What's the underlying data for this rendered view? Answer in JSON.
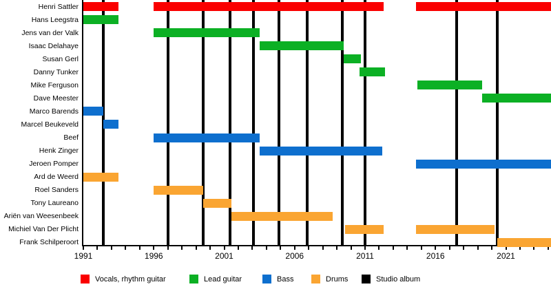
{
  "chart_data": {
    "type": "timeline",
    "title": "",
    "x_axis": {
      "tick_labels": [
        "1991",
        "1996",
        "2001",
        "2006",
        "2011",
        "2016",
        "2021"
      ],
      "minor_tick_interval_years": 1,
      "range": [
        1991,
        2024.3
      ]
    },
    "album_lines_years": [
      1992.4,
      1997.0,
      1999.5,
      2001.4,
      2003.1,
      2004.9,
      2006.9,
      2009.4,
      2011.0,
      2017.5,
      2020.4
    ],
    "rows": [
      {
        "label": "Henri Sattler",
        "role": "vocals_rhythm_guitar",
        "segments": [
          [
            1991.0,
            1993.5
          ],
          [
            1996.0,
            2012.3
          ],
          [
            2014.6,
            2024.3
          ]
        ]
      },
      {
        "label": "Hans Leegstra",
        "role": "lead_guitar",
        "segments": [
          [
            1991.0,
            1993.5
          ]
        ]
      },
      {
        "label": "Jens van der Valk",
        "role": "lead_guitar",
        "segments": [
          [
            1996.0,
            2003.5
          ]
        ]
      },
      {
        "label": "Isaac Delahaye",
        "role": "lead_guitar",
        "segments": [
          [
            2003.5,
            2009.5
          ]
        ]
      },
      {
        "label": "Susan Gerl",
        "role": "lead_guitar",
        "segments": [
          [
            2009.5,
            2010.7
          ]
        ]
      },
      {
        "label": "Danny Tunker",
        "role": "lead_guitar",
        "segments": [
          [
            2010.6,
            2012.4
          ]
        ]
      },
      {
        "label": "Mike Ferguson",
        "role": "lead_guitar",
        "segments": [
          [
            2014.7,
            2019.3
          ]
        ]
      },
      {
        "label": "Dave Meester",
        "role": "lead_guitar",
        "segments": [
          [
            2019.3,
            2024.3
          ]
        ]
      },
      {
        "label": "Marco Barends",
        "role": "bass",
        "segments": [
          [
            1991.0,
            1992.4
          ]
        ]
      },
      {
        "label": "Marcel Beukeveld",
        "role": "bass",
        "segments": [
          [
            1992.4,
            1993.5
          ]
        ]
      },
      {
        "label": "Beef",
        "role": "bass",
        "segments": [
          [
            1996.0,
            2003.5
          ]
        ]
      },
      {
        "label": "Henk Zinger",
        "role": "bass",
        "segments": [
          [
            2003.5,
            2012.2
          ]
        ]
      },
      {
        "label": "Jeroen Pomper",
        "role": "bass",
        "segments": [
          [
            2014.6,
            2024.3
          ]
        ]
      },
      {
        "label": "Ard de Weerd",
        "role": "drums",
        "segments": [
          [
            1991.0,
            1993.5
          ]
        ]
      },
      {
        "label": "Roel Sanders",
        "role": "drums",
        "segments": [
          [
            1996.0,
            1999.5
          ]
        ]
      },
      {
        "label": "Tony Laureano",
        "role": "drums",
        "segments": [
          [
            1999.5,
            2001.5
          ]
        ]
      },
      {
        "label": "Ariën van Weesenbeek",
        "role": "drums",
        "segments": [
          [
            2001.5,
            2008.7
          ]
        ]
      },
      {
        "label": "Michiel Van Der Plicht",
        "role": "drums",
        "segments": [
          [
            2009.6,
            2012.3
          ],
          [
            2014.6,
            2020.2
          ]
        ]
      },
      {
        "label": "Frank Schilperoort",
        "role": "drums",
        "segments": [
          [
            2020.4,
            2024.3
          ]
        ]
      }
    ],
    "colors": {
      "vocals_rhythm_guitar": "#fa0000",
      "lead_guitar": "#0cb024",
      "bass": "#0e6fce",
      "drums": "#faa532",
      "album_line": "#000000",
      "axis": "#000000"
    },
    "legend": [
      {
        "label": "Vocals, rhythm guitar",
        "color": "#fa0000"
      },
      {
        "label": "Lead guitar",
        "color": "#0cb024"
      },
      {
        "label": "Bass",
        "color": "#0e6fce"
      },
      {
        "label": "Drums",
        "color": "#faa532"
      },
      {
        "label": "Studio album",
        "color": "#000000"
      }
    ]
  }
}
